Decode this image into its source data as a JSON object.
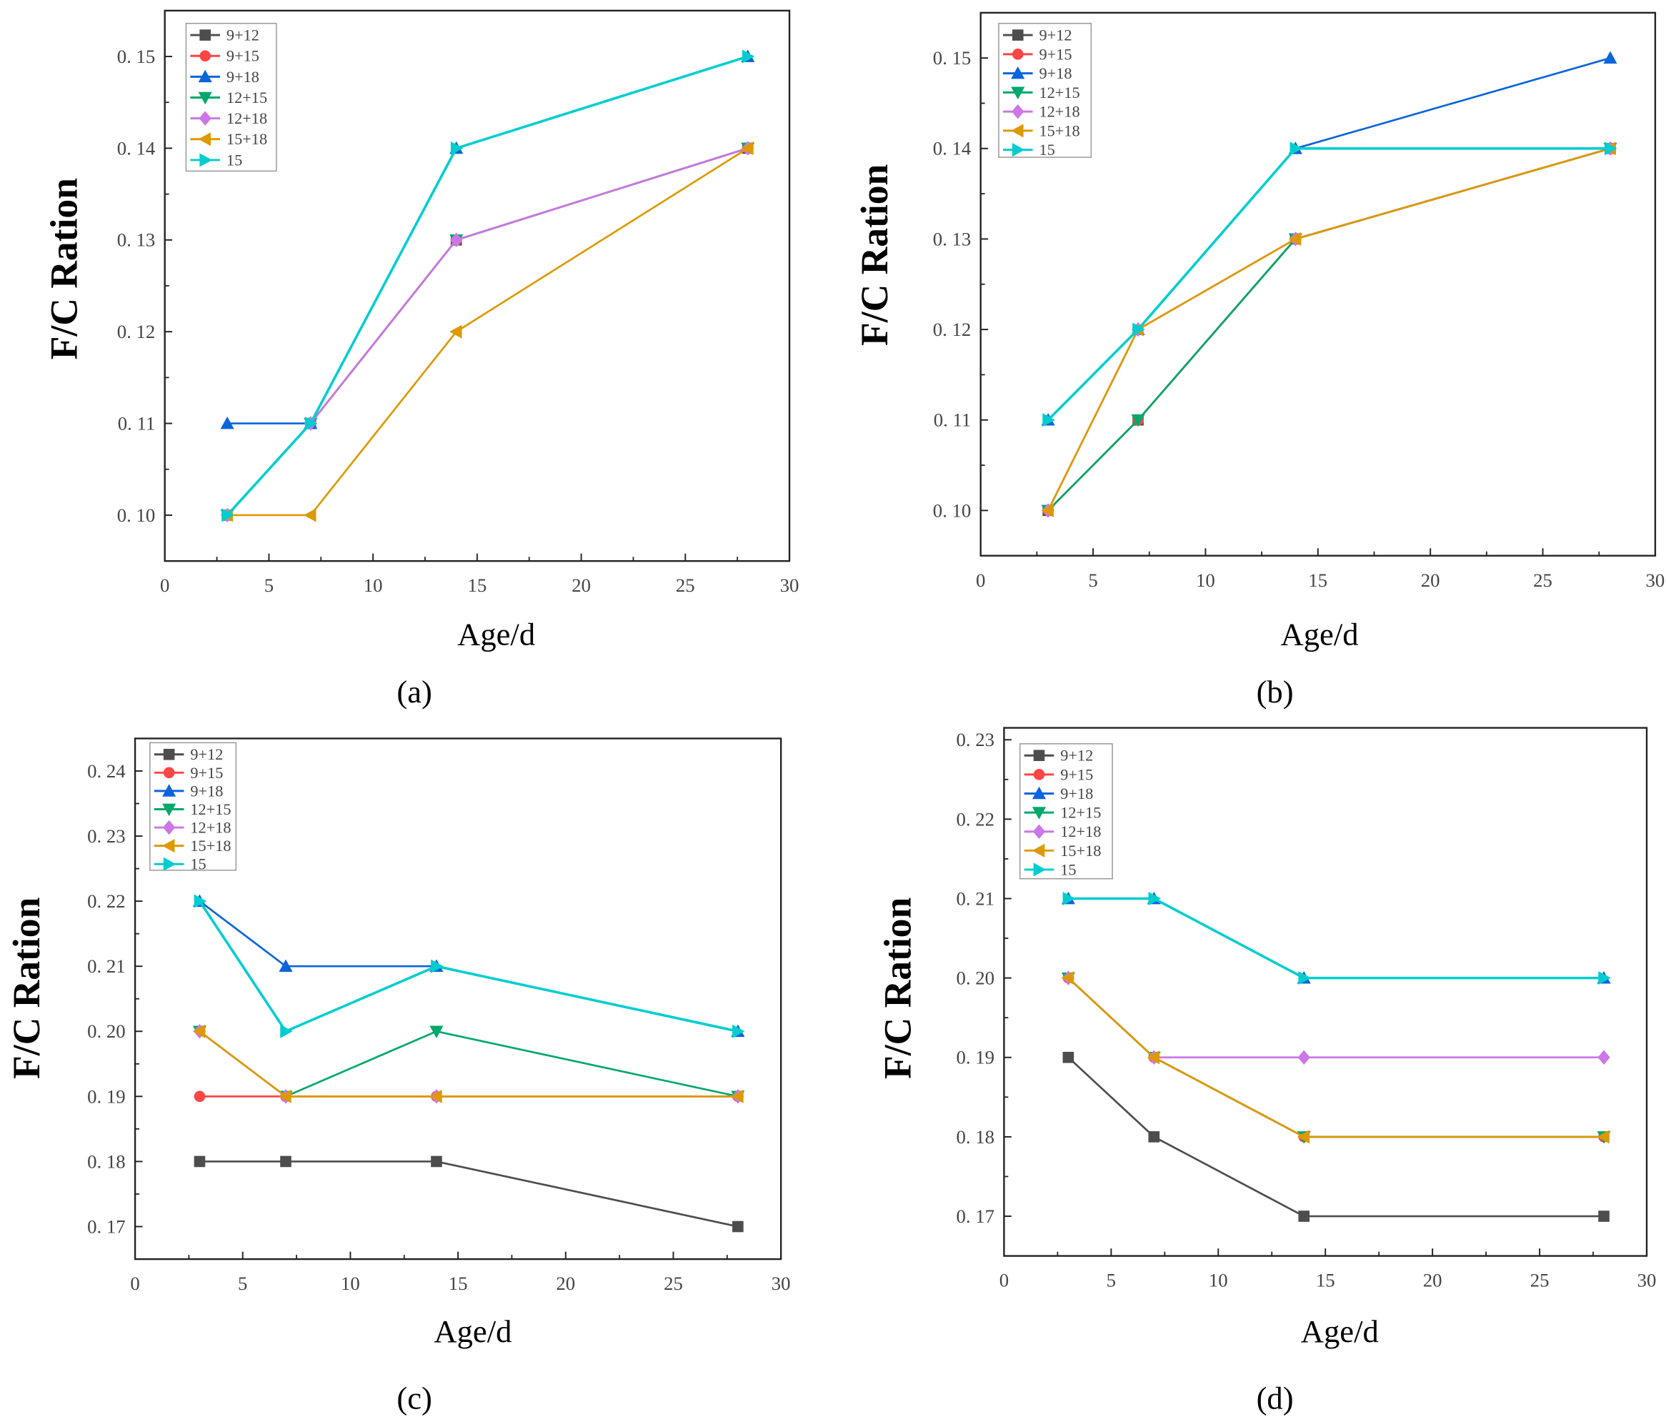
{
  "chart_data": [
    {
      "type": "line",
      "panel_label": "(a)",
      "xlabel": "Age/d",
      "ylabel": "F/C Ration",
      "xlim": [
        0,
        30
      ],
      "ylim": [
        0.095,
        0.155
      ],
      "grid": false,
      "legend_position": "top-left",
      "x_ticks": [
        0,
        5,
        10,
        15,
        20,
        25,
        30
      ],
      "x_tick_labels": [
        "0",
        "5",
        "10",
        "15",
        "20",
        "25",
        "30"
      ],
      "y_ticks": [
        0.1,
        0.11,
        0.12,
        0.13,
        0.14,
        0.15
      ],
      "y_tick_labels": [
        "0. 10",
        "0. 11",
        "0. 12",
        "0. 13",
        "0. 14",
        "0. 15"
      ],
      "x": [
        3,
        7,
        14,
        28
      ],
      "series": [
        {
          "name": "9+12",
          "values": [
            0.1,
            0.11,
            0.13,
            0.14
          ]
        },
        {
          "name": "9+15",
          "values": [
            0.1,
            0.11,
            0.13,
            0.14
          ]
        },
        {
          "name": "9+18",
          "values": [
            0.11,
            0.11,
            0.14,
            0.15
          ]
        },
        {
          "name": "12+15",
          "values": [
            0.1,
            0.11,
            0.13,
            0.14
          ]
        },
        {
          "name": "12+18",
          "values": [
            0.1,
            0.11,
            0.13,
            0.14
          ]
        },
        {
          "name": "15+18",
          "values": [
            0.1,
            0.1,
            0.12,
            0.14
          ]
        },
        {
          "name": "15",
          "values": [
            0.1,
            0.11,
            0.14,
            0.15
          ]
        }
      ]
    },
    {
      "type": "line",
      "panel_label": "(b)",
      "xlabel": "Age/d",
      "ylabel": "F/C Ration",
      "xlim": [
        0,
        30
      ],
      "ylim": [
        0.095,
        0.155
      ],
      "grid": false,
      "legend_position": "top-left",
      "x_ticks": [
        0,
        5,
        10,
        15,
        20,
        25,
        30
      ],
      "x_tick_labels": [
        "0",
        "5",
        "10",
        "15",
        "20",
        "25",
        "30"
      ],
      "y_ticks": [
        0.1,
        0.11,
        0.12,
        0.13,
        0.14,
        0.15
      ],
      "y_tick_labels": [
        "0. 10",
        "0. 11",
        "0. 12",
        "0. 13",
        "0. 14",
        "0. 15"
      ],
      "x": [
        3,
        7,
        14,
        28
      ],
      "series": [
        {
          "name": "9+12",
          "values": [
            0.1,
            0.11,
            0.13,
            0.14
          ]
        },
        {
          "name": "9+15",
          "values": [
            0.1,
            0.11,
            0.13,
            0.14
          ]
        },
        {
          "name": "9+18",
          "values": [
            0.11,
            0.12,
            0.14,
            0.15
          ]
        },
        {
          "name": "12+15",
          "values": [
            0.1,
            0.11,
            0.13,
            0.14
          ]
        },
        {
          "name": "12+18",
          "values": [
            0.1,
            0.12,
            0.13,
            0.14
          ]
        },
        {
          "name": "15+18",
          "values": [
            0.1,
            0.12,
            0.13,
            0.14
          ]
        },
        {
          "name": "15",
          "values": [
            0.11,
            0.12,
            0.14,
            0.14
          ]
        }
      ]
    },
    {
      "type": "line",
      "panel_label": "(c)",
      "xlabel": "Age/d",
      "ylabel": "F/C Ration",
      "xlim": [
        0,
        30
      ],
      "ylim": [
        0.165,
        0.245
      ],
      "grid": false,
      "legend_position": "top-left",
      "x_ticks": [
        0,
        5,
        10,
        15,
        20,
        25,
        30
      ],
      "x_tick_labels": [
        "0",
        "5",
        "10",
        "15",
        "20",
        "25",
        "30"
      ],
      "y_ticks": [
        0.17,
        0.18,
        0.19,
        0.2,
        0.21,
        0.22,
        0.23,
        0.24
      ],
      "y_tick_labels": [
        "0. 17",
        "0. 18",
        "0. 19",
        "0. 20",
        "0. 21",
        "0. 22",
        "0. 23",
        "0. 24"
      ],
      "x": [
        3,
        7,
        14,
        28
      ],
      "series": [
        {
          "name": "9+12",
          "values": [
            0.18,
            0.18,
            0.18,
            0.17
          ]
        },
        {
          "name": "9+15",
          "values": [
            0.19,
            0.19,
            0.19,
            0.19
          ]
        },
        {
          "name": "9+18",
          "values": [
            0.22,
            0.21,
            0.21,
            0.2
          ]
        },
        {
          "name": "12+15",
          "values": [
            0.2,
            0.19,
            0.2,
            0.19
          ]
        },
        {
          "name": "12+18",
          "values": [
            0.2,
            0.19,
            0.19,
            0.19
          ]
        },
        {
          "name": "15+18",
          "values": [
            0.2,
            0.19,
            0.19,
            0.19
          ]
        },
        {
          "name": "15",
          "values": [
            0.22,
            0.2,
            0.21,
            0.2
          ]
        }
      ]
    },
    {
      "type": "line",
      "panel_label": "(d)",
      "xlabel": "Age/d",
      "ylabel": "F/C Ration",
      "xlim": [
        0,
        30
      ],
      "ylim": [
        0.165,
        0.2315
      ],
      "grid": false,
      "legend_position": "top-left",
      "x_ticks": [
        0,
        5,
        10,
        15,
        20,
        25,
        30
      ],
      "x_tick_labels": [
        "0",
        "5",
        "10",
        "15",
        "20",
        "25",
        "30"
      ],
      "y_ticks": [
        0.17,
        0.18,
        0.19,
        0.2,
        0.21,
        0.22,
        0.23
      ],
      "y_tick_labels": [
        "0. 17",
        "0. 18",
        "0. 19",
        "0. 20",
        "0. 21",
        "0. 22",
        "0. 23"
      ],
      "x": [
        3,
        7,
        14,
        28
      ],
      "series": [
        {
          "name": "9+12",
          "values": [
            0.19,
            0.18,
            0.17,
            0.17
          ]
        },
        {
          "name": "9+15",
          "values": [
            0.2,
            0.19,
            0.18,
            0.18
          ]
        },
        {
          "name": "9+18",
          "values": [
            0.21,
            0.21,
            0.2,
            0.2
          ]
        },
        {
          "name": "12+15",
          "values": [
            0.2,
            0.19,
            0.18,
            0.18
          ]
        },
        {
          "name": "12+18",
          "values": [
            0.2,
            0.19,
            0.19,
            0.19
          ]
        },
        {
          "name": "15+18",
          "values": [
            0.2,
            0.19,
            0.18,
            0.18
          ]
        },
        {
          "name": "15",
          "values": [
            0.21,
            0.21,
            0.2,
            0.2
          ]
        }
      ]
    }
  ],
  "series_styles": [
    {
      "name": "9+12",
      "color": "#4d4d4d",
      "marker": "square"
    },
    {
      "name": "9+15",
      "color": "#ff4545",
      "marker": "circle"
    },
    {
      "name": "9+18",
      "color": "#0a64dc",
      "marker": "triangle-up"
    },
    {
      "name": "12+15",
      "color": "#00a86b",
      "marker": "triangle-down"
    },
    {
      "name": "12+18",
      "color": "#cc77e6",
      "marker": "diamond"
    },
    {
      "name": "15+18",
      "color": "#dd9a00",
      "marker": "triangle-left"
    },
    {
      "name": "15",
      "color": "#00cdd0",
      "marker": "triangle-right"
    }
  ]
}
